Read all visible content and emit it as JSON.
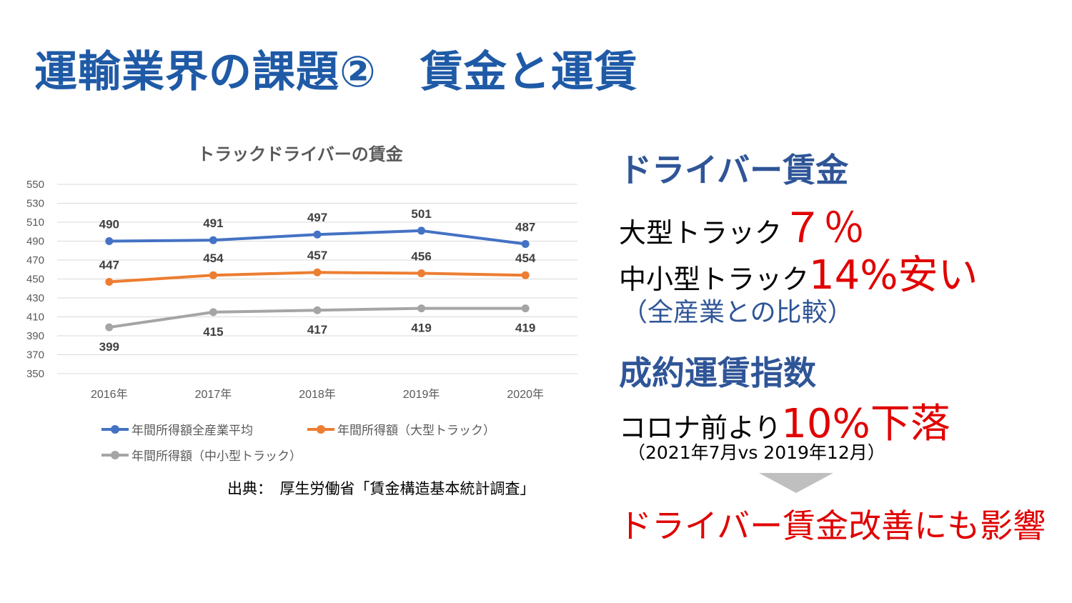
{
  "slide": {
    "title": "運輸業界の課題②　賃金と運賃"
  },
  "chart_data": {
    "type": "line",
    "title": "トラックドライバーの賃金",
    "categories": [
      "2016年",
      "2017年",
      "2018年",
      "2019年",
      "2020年"
    ],
    "ylim": [
      350,
      550
    ],
    "yticks": [
      550,
      530,
      510,
      490,
      470,
      450,
      430,
      410,
      390,
      370,
      350
    ],
    "grid": true,
    "legend_position": "bottom",
    "series": [
      {
        "name": "年間所得額全産業平均",
        "color": "#4472c4",
        "values": [
          490,
          491,
          497,
          501,
          487
        ],
        "label_position": "above"
      },
      {
        "name": "年間所得額（大型トラック）",
        "color": "#ed7d31",
        "values": [
          447,
          454,
          457,
          456,
          454
        ],
        "label_position": "above"
      },
      {
        "name": "年間所得額（中小型トラック）",
        "color": "#a5a5a5",
        "values": [
          399,
          415,
          417,
          419,
          419
        ],
        "label_position": "below"
      }
    ]
  },
  "source": "出典：　厚生労働省「賃金構造基本統計調査」",
  "side": {
    "wage_heading": "ドライバー賃金",
    "large_label": "大型トラック",
    "large_value": "７％",
    "small_label": "中小型トラック",
    "small_value": "14%安い",
    "comparison_note": "（全産業との比較）",
    "fare_heading": "成約運賃指数",
    "fare_label": "コロナ前より",
    "fare_value": "10%下落",
    "fare_period": "（2021年7月vs 2019年12月）",
    "conclusion": "ドライバー賃金改善にも影響"
  },
  "colors": {
    "title": "#1f5aa6",
    "heading": "#2f5597",
    "highlight": "#e00000",
    "arrow": "#bfbfbf"
  }
}
